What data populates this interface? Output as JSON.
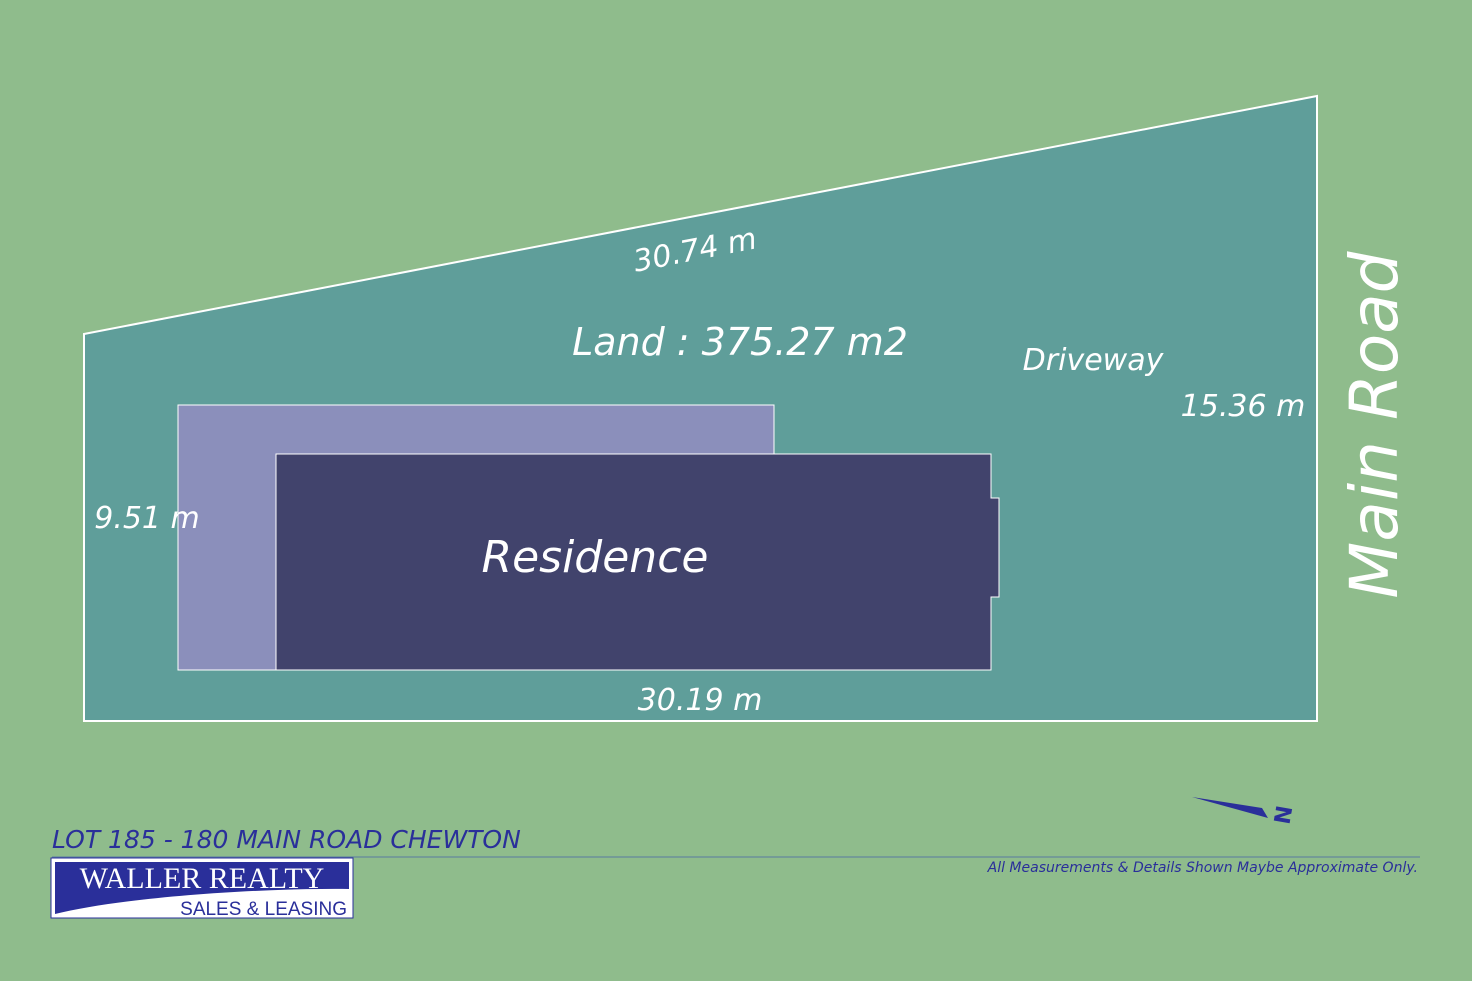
{
  "plan": {
    "top_length": "30.74 m",
    "land": "Land : 375.27 m2",
    "driveway": "Driveway",
    "right_length": "15.36 m",
    "left_length": "9.51 m",
    "residence": "Residence",
    "bottom_length": "30.19 m",
    "road": "Main Road",
    "north": "N"
  },
  "footer": {
    "address": "LOT 185 - 180 MAIN ROAD CHEWTON",
    "brand": "WALLER REALTY",
    "brand_sub": "SALES & LEASING",
    "disclaimer": "All Measurements & Details Shown Maybe Approximate Only."
  }
}
